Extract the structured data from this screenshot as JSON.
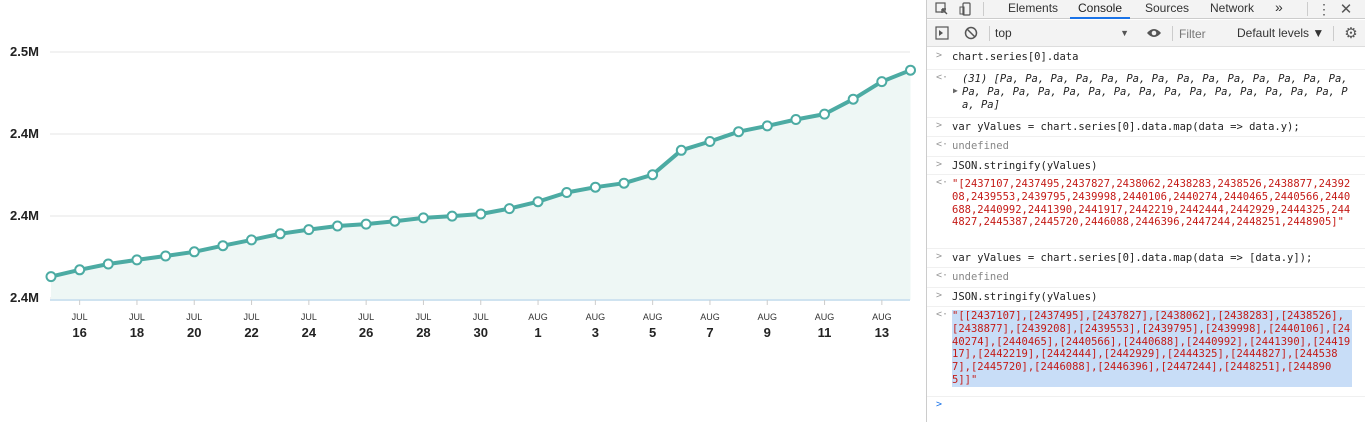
{
  "chart": {
    "y_ticks": [
      "2.5M",
      "2.4M",
      "2.4M",
      "2.4M"
    ],
    "x_ticks": [
      {
        "month": "JUL",
        "day": "16"
      },
      {
        "month": "JUL",
        "day": "18"
      },
      {
        "month": "JUL",
        "day": "20"
      },
      {
        "month": "JUL",
        "day": "22"
      },
      {
        "month": "JUL",
        "day": "24"
      },
      {
        "month": "JUL",
        "day": "26"
      },
      {
        "month": "JUL",
        "day": "28"
      },
      {
        "month": "JUL",
        "day": "30"
      },
      {
        "month": "AUG",
        "day": "1"
      },
      {
        "month": "AUG",
        "day": "3"
      },
      {
        "month": "AUG",
        "day": "5"
      },
      {
        "month": "AUG",
        "day": "7"
      },
      {
        "month": "AUG",
        "day": "9"
      },
      {
        "month": "AUG",
        "day": "11"
      },
      {
        "month": "AUG",
        "day": "13"
      }
    ],
    "line_color": "#4caba3",
    "fill_color": "#eef7f5"
  },
  "chart_data": {
    "type": "area",
    "x": [
      "Jul 15",
      "Jul 16",
      "Jul 17",
      "Jul 18",
      "Jul 19",
      "Jul 20",
      "Jul 21",
      "Jul 22",
      "Jul 23",
      "Jul 24",
      "Jul 25",
      "Jul 26",
      "Jul 27",
      "Jul 28",
      "Jul 29",
      "Jul 30",
      "Jul 31",
      "Aug 1",
      "Aug 2",
      "Aug 3",
      "Aug 4",
      "Aug 5",
      "Aug 6",
      "Aug 7",
      "Aug 8",
      "Aug 9",
      "Aug 10",
      "Aug 11",
      "Aug 12",
      "Aug 13",
      "Aug 14"
    ],
    "series": [
      {
        "values": [
          2437107,
          2437495,
          2437827,
          2438062,
          2438283,
          2438526,
          2438877,
          2439208,
          2439553,
          2439795,
          2439998,
          2440106,
          2440274,
          2440465,
          2440566,
          2440688,
          2440992,
          2441390,
          2441917,
          2442219,
          2442444,
          2442929,
          2444325,
          2444827,
          2445387,
          2445720,
          2446088,
          2446396,
          2447244,
          2448251,
          2448905
        ]
      }
    ],
    "y_tick_labels": [
      "2.5M",
      "2.4M",
      "2.4M",
      "2.4M"
    ],
    "grid": "horizontal",
    "markers": "hollow circles"
  },
  "devtools": {
    "tabs": [
      "Elements",
      "Console",
      "Sources",
      "Network"
    ],
    "active_tab": "Console",
    "more_tabs_icon": "»",
    "context": "top",
    "filter_placeholder": "Filter",
    "levels": "Default levels ▼",
    "lines": [
      {
        "kind": "input",
        "text": "chart.series[0].data"
      },
      {
        "kind": "output",
        "text": "(31) [Pa, Pa, Pa, Pa, Pa, Pa, Pa, Pa, Pa, Pa, Pa, Pa, Pa, Pa, Pa, Pa, Pa, Pa, Pa, Pa, Pa, Pa, Pa, Pa, Pa, Pa, Pa, Pa, Pa, Pa, Pa]"
      },
      {
        "kind": "input",
        "text": "var yValues = chart.series[0].data.map(data => data.y);"
      },
      {
        "kind": "output",
        "text": "undefined"
      },
      {
        "kind": "input",
        "text": "JSON.stringify(yValues)"
      },
      {
        "kind": "output",
        "text": "\"[2437107,2437495,2437827,2438062,2438283,2438526,2438877,2439208,2439553,2439795,2439998,2440106,2440274,2440465,2440566,2440688,2440992,2441390,2441917,2442219,2442444,2442929,2444325,2444827,2445387,2445720,2446088,2446396,2447244,2448251,2448905]\""
      },
      {
        "kind": "input",
        "text": "var yValues = chart.series[0].data.map(data => [data.y]);"
      },
      {
        "kind": "output",
        "text": "undefined"
      },
      {
        "kind": "input",
        "text": "JSON.stringify(yValues)"
      },
      {
        "kind": "output",
        "text": "\"[[2437107],[2437495],[2437827],[2438062],[2438283],[2438526],[2438877],[2439208],[2439553],[2439795],[2439998],[2440106],[2440274],[2440465],[2440566],[2440688],[2440992],[2441390],[2441917],[2442219],[2442444],[2442929],[2444325],[2444827],[2445387],[2445720],[2446088],[2446396],[2447244],[2448251],[2448905]]\""
      }
    ]
  }
}
